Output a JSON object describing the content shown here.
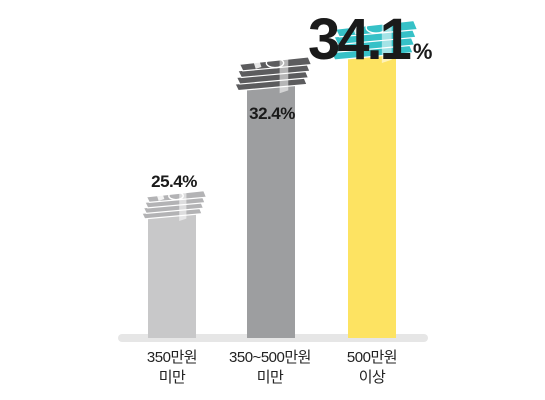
{
  "chart_data": {
    "type": "bar",
    "categories": [
      {
        "line1": "350만원",
        "line2": "미만"
      },
      {
        "line1": "350~500만원",
        "line2": "미만"
      },
      {
        "line1": "500만원",
        "line2": "이상"
      }
    ],
    "values": [
      25.4,
      32.4,
      34.1
    ],
    "value_labels": [
      "25.4%",
      "32.4%",
      "34.1"
    ],
    "highlight_unit": "%",
    "colors": {
      "bars": [
        "#c8c8c9",
        "#9d9ea0",
        "#fde362"
      ],
      "money": [
        "#b3b3b5",
        "#5c5c5e",
        "#36c1c7"
      ],
      "baseline": "#e6e6e6"
    },
    "icons": [
      "money-stack-icon",
      "money-stack-icon",
      "money-stack-icon"
    ],
    "ylim": [
      0,
      40
    ],
    "grid": false
  }
}
